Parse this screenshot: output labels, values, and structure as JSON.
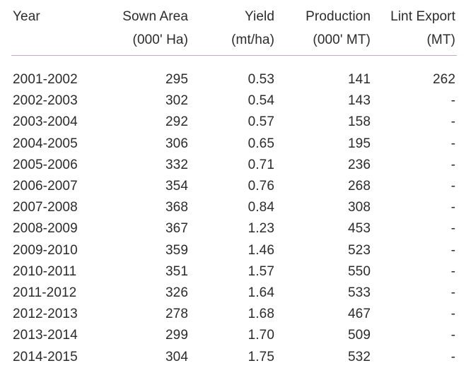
{
  "table": {
    "headers": {
      "year": {
        "line1": "Year",
        "line2": ""
      },
      "sown_area": {
        "line1": "Sown Area",
        "line2": "(000' Ha)"
      },
      "yield": {
        "line1": "Yield",
        "line2": "(mt/ha)"
      },
      "production": {
        "line1": "Production",
        "line2": "(000' MT)"
      },
      "lint_export": {
        "line1": "Lint Export",
        "line2": "(MT)"
      }
    },
    "rows": [
      {
        "year": "2001-2002",
        "sown_area": "295",
        "yield": "0.53",
        "production": "141",
        "lint_export": "262"
      },
      {
        "year": "2002-2003",
        "sown_area": "302",
        "yield": "0.54",
        "production": "143",
        "lint_export": "-"
      },
      {
        "year": "2003-2004",
        "sown_area": "292",
        "yield": "0.57",
        "production": "158",
        "lint_export": "-"
      },
      {
        "year": "2004-2005",
        "sown_area": "306",
        "yield": "0.65",
        "production": "195",
        "lint_export": "-"
      },
      {
        "year": "2005-2006",
        "sown_area": "332",
        "yield": "0.71",
        "production": "236",
        "lint_export": "-"
      },
      {
        "year": "2006-2007",
        "sown_area": "354",
        "yield": "0.76",
        "production": "268",
        "lint_export": "-"
      },
      {
        "year": "2007-2008",
        "sown_area": "368",
        "yield": "0.84",
        "production": "308",
        "lint_export": "-"
      },
      {
        "year": "2008-2009",
        "sown_area": "367",
        "yield": "1.23",
        "production": "453",
        "lint_export": "-"
      },
      {
        "year": "2009-2010",
        "sown_area": "359",
        "yield": "1.46",
        "production": "523",
        "lint_export": "-"
      },
      {
        "year": "2010-2011",
        "sown_area": "351",
        "yield": "1.57",
        "production": "550",
        "lint_export": "-"
      },
      {
        "year": "2011-2012",
        "sown_area": "326",
        "yield": "1.64",
        "production": "533",
        "lint_export": "-"
      },
      {
        "year": "2012-2013",
        "sown_area": "278",
        "yield": "1.68",
        "production": "467",
        "lint_export": "-"
      },
      {
        "year": "2013-2014",
        "sown_area": "299",
        "yield": "1.70",
        "production": "509",
        "lint_export": "-"
      },
      {
        "year": "2014-2015",
        "sown_area": "304",
        "yield": "1.75",
        "production": "532",
        "lint_export": "-"
      }
    ]
  },
  "colors": {
    "text": "#2b2b2b",
    "header_rule": "#c6a9c4"
  }
}
